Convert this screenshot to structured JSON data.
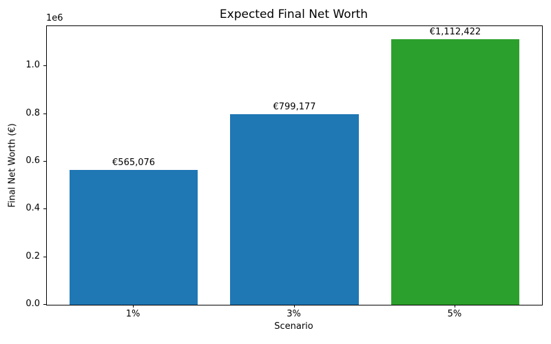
{
  "chart_data": {
    "type": "bar",
    "title": "Expected Final Net Worth",
    "xlabel": "Scenario",
    "ylabel": "Final Net Worth (€)",
    "categories": [
      "1%",
      "3%",
      "5%"
    ],
    "values": [
      565076,
      799177,
      1112422
    ],
    "bar_labels": [
      "€565,076",
      "€799,177",
      "€1,112,422"
    ],
    "bar_colors": [
      "#1f77b4",
      "#1f77b4",
      "#2ca02c"
    ],
    "ylim": [
      0,
      1168043
    ],
    "yticks": [
      0,
      200000,
      400000,
      600000,
      800000,
      1000000
    ],
    "ytick_labels": [
      "0.0",
      "0.2",
      "0.4",
      "0.6",
      "0.8",
      "1.0"
    ],
    "offset_label": "1e6",
    "bar_width_fraction": 0.8,
    "x_margin": 0.05,
    "grid": false,
    "legend": null,
    "background_color": "#ffffff",
    "text_color": "#000000"
  }
}
